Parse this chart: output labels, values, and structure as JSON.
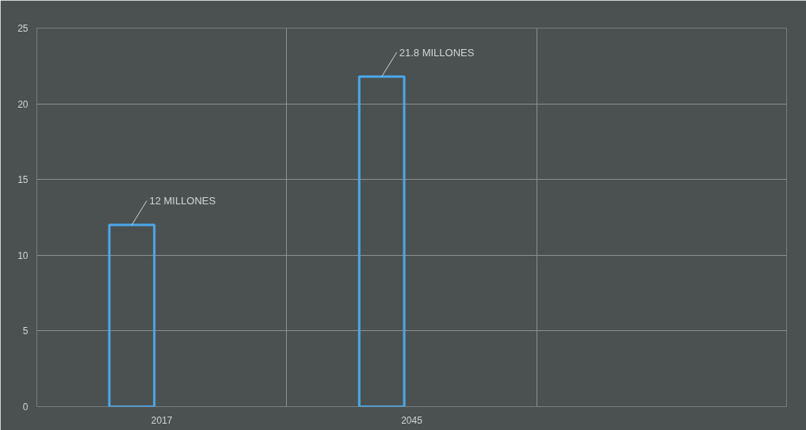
{
  "chart_data": {
    "type": "bar",
    "categories": [
      "2017",
      "2045",
      null
    ],
    "series": [
      {
        "color": "#4aa8ec",
        "values": [
          12,
          21.8,
          null
        ]
      }
    ],
    "value_labels": [
      "12 MILLONES",
      "21.8 MILLONES",
      null
    ],
    "ylim": [
      0,
      25
    ],
    "yticks": [
      0,
      5,
      10,
      15,
      20,
      25
    ],
    "grid": true
  }
}
